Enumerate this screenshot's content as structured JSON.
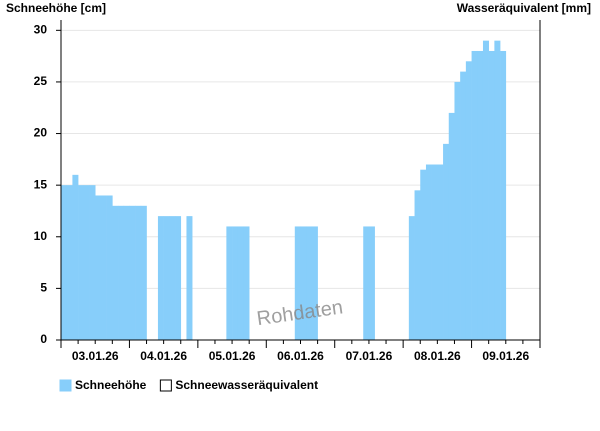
{
  "chart_data": {
    "type": "area",
    "y_label": "Schneehöhe [cm]",
    "y2_label": "Wasseräquivalent [mm]",
    "annotation": "Rohdaten",
    "categories": [
      "03.01.26",
      "04.01.26",
      "05.01.26",
      "06.01.26",
      "07.01.26",
      "08.01.26",
      "09.01.26"
    ],
    "series": [
      {
        "name": "Schneehöhe",
        "color": "#87cefa",
        "values": [
          [
            15,
            15,
            16,
            15,
            15,
            15,
            14,
            14,
            14,
            13,
            13,
            13
          ],
          [
            13,
            13,
            13,
            null,
            null,
            12,
            12,
            12,
            12,
            null,
            12,
            null
          ],
          [
            null,
            null,
            null,
            null,
            null,
            11,
            11,
            11,
            11,
            null,
            null,
            null
          ],
          [
            null,
            null,
            null,
            null,
            null,
            11,
            11,
            11,
            11,
            null,
            null,
            null
          ],
          [
            null,
            null,
            null,
            null,
            null,
            11,
            11,
            null,
            null,
            null,
            null,
            null
          ],
          [
            null,
            12,
            14.5,
            16.5,
            17,
            17,
            17,
            19,
            22,
            25,
            26,
            27
          ],
          [
            28,
            28,
            29,
            28,
            29,
            28,
            null,
            null,
            null,
            null,
            null,
            null
          ]
        ]
      },
      {
        "name": "Schneewasseräquivalent",
        "color": "#ffffff"
      }
    ],
    "ylim": [
      0,
      31
    ],
    "yticks": [
      0,
      5,
      10,
      15,
      20,
      25,
      30
    ],
    "grid": true
  }
}
